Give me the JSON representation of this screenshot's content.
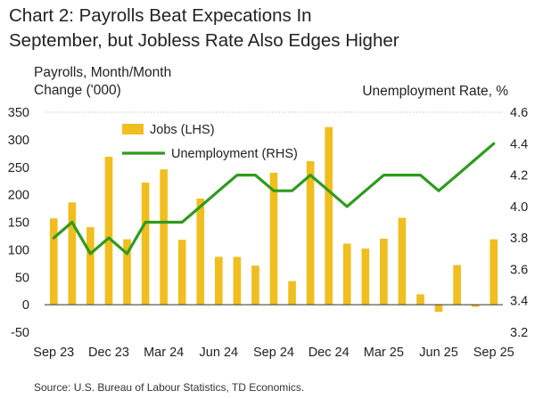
{
  "title_line1": "Chart 2: Payrolls Beat Expecations In",
  "title_line2": "September, but Jobless Rate Also Edges Higher",
  "source": "Source: U.S. Bureau of Labour Statistics, TD Economics.",
  "colors": {
    "bars": "#F0BE1E",
    "line": "#2E9B1E",
    "gridline": "#c8c8a0"
  },
  "chart_data": {
    "type": "bar",
    "categories": [
      "Sep 23",
      "Oct 23",
      "Nov 23",
      "Dec 23",
      "Jan 24",
      "Feb 24",
      "Mar 24",
      "Apr 24",
      "May 24",
      "Jun 24",
      "Jul 24",
      "Aug 24",
      "Sep 24",
      "Oct 24",
      "Nov 24",
      "Dec 24",
      "Jan 25",
      "Feb 25",
      "Mar 25",
      "Apr 25",
      "May 25",
      "Jun 25",
      "Jul 25",
      "Aug 25",
      "Sep 25"
    ],
    "x_tick_labels": [
      "Sep 23",
      "Dec 23",
      "Mar 24",
      "Jun 24",
      "Sep 24",
      "Dec 24",
      "Mar 25",
      "Jun 25",
      "Sep 25"
    ],
    "series": [
      {
        "name": "Jobs (LHS)",
        "type": "bar",
        "axis": "left",
        "values": [
          157,
          186,
          141,
          269,
          119,
          222,
          246,
          118,
          193,
          87,
          87,
          71,
          240,
          43,
          261,
          323,
          111,
          102,
          120,
          158,
          19,
          -13,
          72,
          -4,
          119
        ]
      },
      {
        "name": "Unemployment (RHS)",
        "type": "line",
        "axis": "right",
        "values": [
          3.8,
          3.9,
          3.7,
          3.8,
          3.7,
          3.9,
          3.9,
          3.9,
          4.0,
          4.1,
          4.2,
          4.2,
          4.1,
          4.1,
          4.2,
          4.1,
          4.0,
          4.1,
          4.2,
          4.2,
          4.2,
          4.1,
          4.2,
          4.3,
          4.4
        ]
      }
    ],
    "ylabel_left_line1": "Payrolls, Month/Month",
    "ylabel_left_line2": "Change ('000)",
    "ylabel_right": "Unemployment Rate, %",
    "ylim_left": [
      -50,
      350
    ],
    "yticks_left": [
      "-50",
      "0",
      "50",
      "100",
      "150",
      "200",
      "250",
      "300",
      "350"
    ],
    "ylim_right": [
      3.2,
      4.6
    ],
    "yticks_right": [
      "3.2",
      "3.4",
      "3.6",
      "3.8",
      "4.0",
      "4.2",
      "4.4",
      "4.6"
    ],
    "grid": false,
    "legend_position": "top-left"
  }
}
